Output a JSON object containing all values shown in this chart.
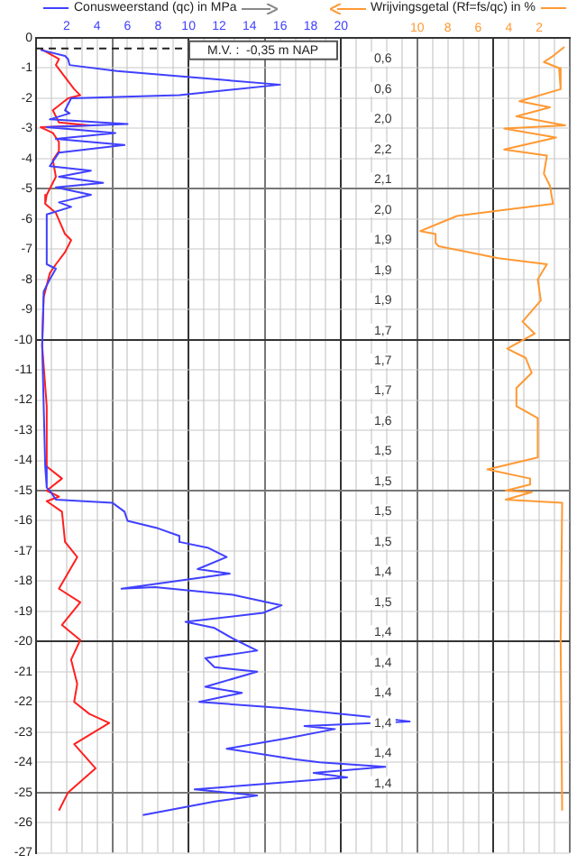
{
  "chart_data": {
    "type": "line",
    "xlim": [
      0,
      35
    ],
    "xticks": [
      {
        "value": 0,
        "label": null
      },
      {
        "value": 1,
        "label": null
      },
      2,
      {
        "value": 3,
        "label": null
      },
      4,
      {
        "value": 5,
        "label": null
      },
      6,
      {
        "value": 7,
        "label": null
      },
      8,
      {
        "value": 9,
        "label": null
      },
      10,
      {
        "value": 11,
        "label": null
      },
      12,
      {
        "value": 13,
        "label": null
      },
      14,
      {
        "value": 15,
        "label": null
      },
      16,
      {
        "value": 17,
        "label": null
      },
      18,
      {
        "value": 19,
        "label": null
      },
      20,
      {
        "value": 21,
        "label": null
      },
      {
        "value": 22,
        "label": null
      },
      {
        "value": 23,
        "label": null
      },
      {
        "value": 24,
        "label": null
      },
      {
        "value": 25,
        "label": null
      },
      {
        "value": 26,
        "label": null
      },
      {
        "value": 27,
        "label": null
      },
      {
        "value": 28,
        "label": null
      },
      {
        "value": 29,
        "label": null
      },
      {
        "value": 30,
        "label": null
      },
      {
        "value": 31,
        "label": null
      },
      {
        "value": 32,
        "label": null
      },
      {
        "value": 33,
        "label": null
      },
      {
        "value": 34,
        "label": null
      },
      {
        "value": 35,
        "label": null
      }
    ],
    "x2lim": [
      35,
      0
    ],
    "x2ticks": [
      10,
      8,
      6,
      4,
      2
    ],
    "ylim": [
      -27,
      0
    ],
    "yticks": [
      0,
      -1,
      -2,
      -3,
      -4,
      -5,
      -6,
      -7,
      -8,
      -9,
      -10,
      -11,
      -12,
      -13,
      -14,
      -15,
      -16,
      -17,
      -18,
      -19,
      -20,
      -21,
      -22,
      -23,
      -24,
      -25,
      -26,
      -27
    ],
    "grid": true,
    "legend": "top",
    "series": [
      {
        "name": "Conusweerstand (qc) in MPa",
        "color": "#4040ff",
        "x": [
          0.3,
          1.9,
          2.1,
          2.2,
          5.3,
          16.0,
          9.4,
          2.3,
          1.9,
          2.2,
          0.9,
          6.0,
          0.7,
          5.2,
          1.3,
          5.8,
          1.5,
          0.9,
          3.6,
          1.5,
          4.4,
          1.3,
          3.6,
          1.5,
          2.3,
          0.7,
          0.7,
          1.3,
          0.9,
          0.5,
          0.4,
          0.5,
          0.6,
          0.7,
          0.9,
          1.3,
          5.0,
          5.8,
          6.0,
          8.0,
          9.4,
          9.4,
          11.3,
          12.5,
          10.6,
          12.7,
          5.6,
          7.8,
          12.9,
          16.1,
          14.9,
          9.8,
          11.7,
          12.9,
          14.5,
          11.1,
          11.7,
          14.5,
          11.1,
          13.5,
          10.7,
          16.1,
          22.0,
          24.5,
          17.6,
          19.6,
          16.5,
          12.5,
          16.9,
          18.6,
          22.9,
          18.2,
          20.4,
          10.4,
          14.5,
          11.7,
          7.0
        ],
        "values": [
          -0.4,
          -0.6,
          -0.7,
          -0.9,
          -1.1,
          -1.55,
          -1.9,
          -2.0,
          -2.4,
          -2.5,
          -2.7,
          -2.85,
          -2.96,
          -3.15,
          -3.35,
          -3.55,
          -3.8,
          -4.25,
          -4.4,
          -4.6,
          -4.8,
          -4.95,
          -5.2,
          -5.45,
          -5.6,
          -5.85,
          -7.5,
          -7.65,
          -8.0,
          -8.4,
          -10.2,
          -12.2,
          -14.2,
          -14.9,
          -15.0,
          -15.3,
          -15.4,
          -15.7,
          -16.0,
          -16.25,
          -16.5,
          -16.7,
          -16.9,
          -17.2,
          -17.6,
          -17.75,
          -18.25,
          -18.2,
          -18.45,
          -18.8,
          -19.05,
          -19.35,
          -19.55,
          -19.9,
          -20.3,
          -20.55,
          -20.85,
          -21.0,
          -21.5,
          -21.7,
          -22.0,
          -22.2,
          -22.5,
          -22.65,
          -22.8,
          -22.9,
          -23.2,
          -23.55,
          -23.9,
          -24.0,
          -24.15,
          -24.35,
          -24.5,
          -24.9,
          -25.1,
          -25.3,
          -25.75
        ]
      },
      {
        "color": "#ff2020",
        "x": [
          0.3,
          1.5,
          1.3,
          2.5,
          2.9,
          2.1,
          1.1,
          1.5,
          3.5,
          0.3,
          1.1,
          1.5,
          1.5,
          1.1,
          1.3,
          0.7,
          0.6,
          1.3,
          1.9,
          2.3,
          1.9,
          1.3,
          0.9,
          0.5,
          0.4,
          0.7,
          0.7,
          1.7,
          0.7,
          1.5,
          0.7,
          1.7,
          1.9,
          2.7,
          1.5,
          2.9,
          1.7,
          2.9,
          2.3,
          2.7,
          2.5,
          3.5,
          4.8,
          2.5,
          3.9,
          2.1,
          1.5
        ],
        "values": [
          -0.36,
          -0.7,
          -0.9,
          -1.7,
          -1.9,
          -2.0,
          -2.4,
          -2.8,
          -2.9,
          -2.96,
          -3.15,
          -3.45,
          -3.75,
          -4.05,
          -4.6,
          -5.2,
          -5.5,
          -5.8,
          -6.5,
          -6.7,
          -7.1,
          -7.5,
          -7.8,
          -8.6,
          -10.2,
          -12.2,
          -14.2,
          -14.6,
          -15.0,
          -15.2,
          -15.35,
          -15.7,
          -16.7,
          -17.2,
          -18.25,
          -18.7,
          -19.45,
          -19.95,
          -20.6,
          -21.4,
          -22.0,
          -22.4,
          -22.7,
          -23.4,
          -24.2,
          -25.0,
          -25.6
        ]
      },
      {
        "name": "Wrijvingsgetal (Rf=fs/qc) in %",
        "color": "#ff9933",
        "axis": "x2",
        "x": [
          0.35,
          1.1,
          1.7,
          0.7,
          0.6,
          3.3,
          1.3,
          3.5,
          0.3,
          4.3,
          0.9,
          4.3,
          1.5,
          1.7,
          1.3,
          1.1,
          4.3,
          7.4,
          9.8,
          8.8,
          8.8,
          8.6,
          4.7,
          1.5,
          2.1,
          1.9,
          3.1,
          2.3,
          4.1,
          2.9,
          2.5,
          3.5,
          3.5,
          2.1,
          2.1,
          5.4,
          2.6,
          2.6,
          4.2,
          2.5,
          4.2,
          0.5,
          0.6,
          0.5
        ],
        "values": [
          -0.3,
          -0.6,
          -0.8,
          -1.0,
          -1.7,
          -2.1,
          -2.3,
          -2.6,
          -2.9,
          -3.0,
          -3.3,
          -3.7,
          -3.9,
          -4.5,
          -4.9,
          -5.5,
          -5.7,
          -5.9,
          -6.4,
          -6.5,
          -6.8,
          -6.9,
          -7.3,
          -7.5,
          -8.0,
          -8.7,
          -9.4,
          -9.8,
          -10.3,
          -10.6,
          -11.1,
          -11.6,
          -12.2,
          -12.6,
          -13.9,
          -14.3,
          -14.6,
          -14.8,
          -15.0,
          -15.05,
          -15.3,
          -15.4,
          -20.0,
          -25.6
        ]
      }
    ],
    "ref_lines": [
      {
        "axis": "y",
        "value": -0.35,
        "label": "M.V. :  -0,35 m NAP",
        "line_style": "dashed"
      }
    ],
    "annotations": [
      "0,6",
      "0,6",
      "2,0",
      "2,2",
      "2,1",
      "2,0",
      "1,9",
      "1,9",
      "1,9",
      "1,7",
      "1,7",
      "1,7",
      "1,6",
      "1,5",
      "1,5",
      "1,5",
      "1,5",
      "1,4",
      "1,5",
      "1,4",
      "1,4",
      "1,4",
      "1,4",
      "1,4",
      "1,4"
    ]
  }
}
